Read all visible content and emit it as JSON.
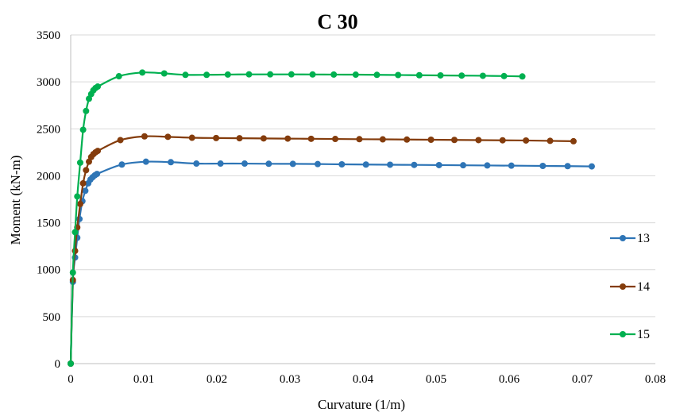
{
  "chart_data": {
    "type": "line",
    "title": "C 30",
    "xlabel": "Curvature (1/m)",
    "ylabel": "Moment (kN-m)",
    "xlim": [
      0,
      0.08
    ],
    "ylim": [
      0,
      3500
    ],
    "xticks": [
      0,
      0.01,
      0.02,
      0.03,
      0.04,
      0.05,
      0.06,
      0.07,
      0.08
    ],
    "xtick_labels": [
      "0",
      "0.01",
      "0.02",
      "0.03",
      "0.04",
      "0.05",
      "0.06",
      "0.07",
      "0.08"
    ],
    "yticks": [
      0,
      500,
      1000,
      1500,
      2000,
      2500,
      3000,
      3500
    ],
    "ytick_labels": [
      "0",
      "500",
      "1000",
      "1500",
      "2000",
      "2500",
      "3000",
      "3500"
    ],
    "grid": "horizontal",
    "legend_position": "right",
    "series": [
      {
        "name": "13",
        "color": "#2e75b6",
        "points": [
          [
            0,
            0
          ],
          [
            0.0003,
            870
          ],
          [
            0.0006,
            1130
          ],
          [
            0.0009,
            1340
          ],
          [
            0.0012,
            1540
          ],
          [
            0.0016,
            1730
          ],
          [
            0.002,
            1840
          ],
          [
            0.0024,
            1920
          ],
          [
            0.0027,
            1960
          ],
          [
            0.003,
            1985
          ],
          [
            0.0033,
            2005
          ],
          [
            0.0036,
            2020
          ],
          [
            0.007,
            2120
          ],
          [
            0.0103,
            2150
          ],
          [
            0.0137,
            2145
          ],
          [
            0.0172,
            2130
          ],
          [
            0.0205,
            2130
          ],
          [
            0.0238,
            2130
          ],
          [
            0.0271,
            2128
          ],
          [
            0.0304,
            2127
          ],
          [
            0.0338,
            2125
          ],
          [
            0.0371,
            2122
          ],
          [
            0.0404,
            2120
          ],
          [
            0.0437,
            2118
          ],
          [
            0.047,
            2116
          ],
          [
            0.0504,
            2114
          ],
          [
            0.0537,
            2112
          ],
          [
            0.057,
            2110
          ],
          [
            0.0603,
            2108
          ],
          [
            0.0646,
            2105
          ],
          [
            0.068,
            2103
          ],
          [
            0.0713,
            2100
          ]
        ]
      },
      {
        "name": "14",
        "color": "#843c0c",
        "points": [
          [
            0,
            0
          ],
          [
            0.0003,
            890
          ],
          [
            0.0006,
            1200
          ],
          [
            0.0009,
            1450
          ],
          [
            0.0013,
            1700
          ],
          [
            0.0017,
            1920
          ],
          [
            0.0021,
            2060
          ],
          [
            0.0025,
            2150
          ],
          [
            0.0028,
            2200
          ],
          [
            0.0031,
            2230
          ],
          [
            0.0034,
            2250
          ],
          [
            0.0037,
            2265
          ],
          [
            0.0068,
            2380
          ],
          [
            0.0101,
            2420
          ],
          [
            0.0133,
            2415
          ],
          [
            0.0166,
            2405
          ],
          [
            0.0199,
            2402
          ],
          [
            0.0231,
            2400
          ],
          [
            0.0264,
            2398
          ],
          [
            0.0297,
            2396
          ],
          [
            0.0329,
            2394
          ],
          [
            0.0362,
            2392
          ],
          [
            0.0395,
            2390
          ],
          [
            0.0427,
            2388
          ],
          [
            0.046,
            2386
          ],
          [
            0.0493,
            2384
          ],
          [
            0.0525,
            2382
          ],
          [
            0.0558,
            2380
          ],
          [
            0.0591,
            2378
          ],
          [
            0.0623,
            2376
          ],
          [
            0.0656,
            2372
          ],
          [
            0.0688,
            2368
          ]
        ]
      },
      {
        "name": "15",
        "color": "#00b050",
        "points": [
          [
            0,
            0
          ],
          [
            0.0003,
            970
          ],
          [
            0.0006,
            1400
          ],
          [
            0.0009,
            1780
          ],
          [
            0.0013,
            2140
          ],
          [
            0.0017,
            2490
          ],
          [
            0.0021,
            2690
          ],
          [
            0.0025,
            2820
          ],
          [
            0.0028,
            2870
          ],
          [
            0.0031,
            2910
          ],
          [
            0.0034,
            2935
          ],
          [
            0.0037,
            2950
          ],
          [
            0.0066,
            3060
          ],
          [
            0.0098,
            3100
          ],
          [
            0.0128,
            3090
          ],
          [
            0.0157,
            3075
          ],
          [
            0.0186,
            3075
          ],
          [
            0.0215,
            3078
          ],
          [
            0.0244,
            3080
          ],
          [
            0.0273,
            3080
          ],
          [
            0.0302,
            3080
          ],
          [
            0.0331,
            3079
          ],
          [
            0.036,
            3078
          ],
          [
            0.039,
            3077
          ],
          [
            0.0419,
            3075
          ],
          [
            0.0448,
            3073
          ],
          [
            0.0477,
            3071
          ],
          [
            0.0506,
            3069
          ],
          [
            0.0535,
            3067
          ],
          [
            0.0564,
            3065
          ],
          [
            0.0593,
            3062
          ],
          [
            0.0618,
            3058
          ]
        ]
      }
    ]
  }
}
